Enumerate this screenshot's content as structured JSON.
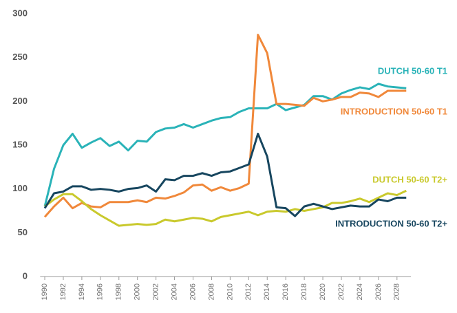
{
  "chart_data": {
    "type": "line",
    "x": [
      1990,
      1991,
      1992,
      1993,
      1994,
      1995,
      1996,
      1997,
      1998,
      1999,
      2000,
      2001,
      2002,
      2003,
      2004,
      2005,
      2006,
      2007,
      2008,
      2009,
      2010,
      2011,
      2012,
      2013,
      2014,
      2015,
      2016,
      2017,
      2018,
      2019,
      2020,
      2021,
      2022,
      2023,
      2024,
      2025,
      2026,
      2027,
      2028,
      2029
    ],
    "xlim": [
      1989.5,
      2029.5
    ],
    "xticks": [
      1990,
      1992,
      1994,
      1996,
      1998,
      2000,
      2002,
      2004,
      2006,
      2008,
      2010,
      2012,
      2014,
      2016,
      2018,
      2020,
      2022,
      2024,
      2026,
      2028
    ],
    "ylim": [
      0,
      300
    ],
    "yticks": [
      0,
      50,
      100,
      150,
      200,
      250,
      300
    ],
    "grid": false,
    "series": [
      {
        "name": "DUTCH 50-60 T1",
        "color": "#2ab3b8",
        "values": [
          80,
          123,
          150,
          163,
          147,
          153,
          158,
          149,
          154,
          144,
          155,
          154,
          165,
          169,
          170,
          174,
          170,
          174,
          178,
          181,
          182,
          188,
          192,
          192,
          192,
          197,
          190,
          193,
          196,
          206,
          206,
          202,
          209,
          213,
          216,
          214,
          220,
          217,
          216,
          215
        ]
      },
      {
        "name": "INTRODUCTION 50-60 T1",
        "color": "#f0883a",
        "values": [
          68,
          80,
          90,
          78,
          84,
          80,
          79,
          85,
          85,
          85,
          87,
          85,
          90,
          89,
          92,
          96,
          104,
          105,
          98,
          102,
          98,
          101,
          106,
          276,
          255,
          197,
          197,
          196,
          195,
          204,
          200,
          202,
          205,
          205,
          210,
          209,
          205,
          212,
          212,
          212
        ]
      },
      {
        "name": "DUTCH 50-60 T2+",
        "color": "#c9c92c",
        "values": [
          80,
          88,
          94,
          94,
          86,
          77,
          70,
          64,
          58,
          59,
          60,
          59,
          60,
          65,
          63,
          65,
          67,
          66,
          63,
          68,
          70,
          72,
          74,
          70,
          74,
          75,
          74,
          77,
          75,
          77,
          79,
          84,
          84,
          86,
          89,
          85,
          90,
          95,
          93,
          98
        ]
      },
      {
        "name": "INTRODUCTION 50-60 T2+",
        "color": "#17465f",
        "values": [
          78,
          95,
          97,
          103,
          103,
          99,
          100,
          99,
          97,
          100,
          101,
          104,
          97,
          111,
          110,
          115,
          115,
          118,
          115,
          119,
          120,
          124,
          128,
          163,
          137,
          79,
          78,
          69,
          80,
          83,
          80,
          77,
          79,
          81,
          80,
          80,
          88,
          86,
          90,
          90
        ]
      }
    ]
  }
}
